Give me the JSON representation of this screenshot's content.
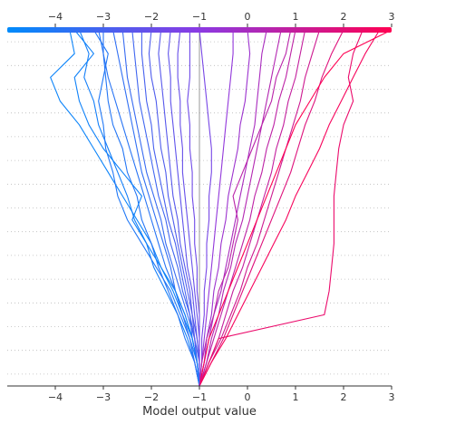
{
  "chart_data": {
    "type": "line",
    "subtype": "decision_plot",
    "title": "",
    "xlabel": "Model output value",
    "ylabel": "",
    "xlim": [
      -5.0,
      3.0
    ],
    "base_value": -1.0,
    "x_ticks": [
      -4,
      -3,
      -2,
      -1,
      0,
      1,
      2,
      3
    ],
    "x_tick_labels": [
      "−4",
      "−3",
      "−2",
      "−1",
      "0",
      "1",
      "2",
      "3"
    ],
    "feature_rows": 15,
    "feature_names": [],
    "top_axis": true,
    "bottom_axis": true,
    "grid": "dotted-horizontal",
    "color_scale": {
      "low": "#008bfb",
      "mid": "#8b3ae3",
      "high": "#ff0052",
      "min": -4.0,
      "max": 3.0
    },
    "series": [
      {
        "values": [
          -1.0,
          -1.05,
          -1.15,
          -1.35,
          -1.55,
          -1.8,
          -2.0,
          -2.3,
          -2.6,
          -2.9,
          -3.2,
          -3.5,
          -3.9,
          -4.1,
          -3.6,
          -3.7
        ]
      },
      {
        "values": [
          -1.0,
          -1.1,
          -1.25,
          -1.45,
          -1.7,
          -1.95,
          -2.1,
          -2.35,
          -2.5,
          -2.7,
          -2.9,
          -3.1,
          -3.2,
          -3.4,
          -3.3,
          -3.5
        ]
      },
      {
        "values": [
          -1.0,
          -1.05,
          -1.2,
          -1.4,
          -1.6,
          -1.9,
          -2.2,
          -2.5,
          -2.7,
          -2.8,
          -2.95,
          -3.0,
          -3.1,
          -3.0,
          -2.9,
          -3.2
        ]
      },
      {
        "values": [
          -1.0,
          -1.1,
          -1.3,
          -1.45,
          -1.65,
          -1.85,
          -2.0,
          -2.2,
          -2.3,
          -2.5,
          -2.6,
          -2.8,
          -2.9,
          -2.95,
          -3.0,
          -3.1
        ]
      },
      {
        "values": [
          -1.0,
          -1.05,
          -1.15,
          -1.3,
          -1.5,
          -1.7,
          -1.85,
          -2.0,
          -2.15,
          -2.3,
          -2.45,
          -2.6,
          -2.75,
          -2.9,
          -3.0,
          -3.0
        ]
      },
      {
        "values": [
          -1.0,
          -1.1,
          -1.2,
          -1.35,
          -1.5,
          -1.6,
          -1.75,
          -1.9,
          -2.05,
          -2.2,
          -2.3,
          -2.4,
          -2.5,
          -2.6,
          -2.7,
          -2.8
        ]
      },
      {
        "values": [
          -1.0,
          -1.0,
          -1.1,
          -1.25,
          -1.4,
          -1.55,
          -1.7,
          -1.8,
          -1.95,
          -2.1,
          -2.2,
          -2.3,
          -2.4,
          -2.5,
          -2.55,
          -2.6
        ]
      },
      {
        "values": [
          -1.0,
          -1.05,
          -1.15,
          -1.2,
          -1.35,
          -1.45,
          -1.6,
          -1.7,
          -1.85,
          -1.95,
          -2.05,
          -2.15,
          -2.25,
          -2.3,
          -2.35,
          -2.4
        ]
      },
      {
        "values": [
          -1.0,
          -1.05,
          -1.1,
          -1.2,
          -1.3,
          -1.4,
          -1.5,
          -1.65,
          -1.75,
          -1.85,
          -1.95,
          -2.0,
          -2.1,
          -2.15,
          -2.2,
          -2.2
        ]
      },
      {
        "values": [
          -1.0,
          -1.0,
          -1.05,
          -1.15,
          -1.25,
          -1.35,
          -1.45,
          -1.55,
          -1.65,
          -1.7,
          -1.8,
          -1.85,
          -1.9,
          -2.0,
          -2.05,
          -2.0
        ]
      },
      {
        "values": [
          -1.0,
          -1.05,
          -1.1,
          -1.15,
          -1.2,
          -1.3,
          -1.4,
          -1.45,
          -1.55,
          -1.6,
          -1.65,
          -1.7,
          -1.75,
          -1.8,
          -1.85,
          -1.8
        ]
      },
      {
        "values": [
          -1.0,
          -1.0,
          -1.05,
          -1.1,
          -1.15,
          -1.25,
          -1.3,
          -1.35,
          -1.4,
          -1.45,
          -1.5,
          -1.55,
          -1.6,
          -1.6,
          -1.65,
          -1.6
        ]
      },
      {
        "values": [
          -1.0,
          -1.0,
          -1.0,
          -1.05,
          -1.1,
          -1.15,
          -1.2,
          -1.25,
          -1.3,
          -1.35,
          -1.35,
          -1.4,
          -1.4,
          -1.45,
          -1.45,
          -1.4
        ]
      },
      {
        "values": [
          -1.0,
          -1.0,
          -1.0,
          -1.0,
          -1.05,
          -1.05,
          -1.1,
          -1.1,
          -1.15,
          -1.15,
          -1.2,
          -1.2,
          -1.25,
          -1.2,
          -1.2,
          -1.2
        ]
      },
      {
        "values": [
          -1.0,
          -0.95,
          -0.95,
          -0.9,
          -0.9,
          -0.85,
          -0.85,
          -0.8,
          -0.8,
          -0.75,
          -0.75,
          -0.8,
          -0.85,
          -0.9,
          -0.95,
          -1.0
        ]
      },
      {
        "values": [
          -1.0,
          -0.95,
          -0.9,
          -0.85,
          -0.8,
          -0.75,
          -0.7,
          -0.65,
          -0.6,
          -0.55,
          -0.5,
          -0.45,
          -0.4,
          -0.35,
          -0.3,
          -0.3
        ]
      },
      {
        "values": [
          -1.0,
          -0.9,
          -0.85,
          -0.75,
          -0.7,
          -0.6,
          -0.55,
          -0.45,
          -0.4,
          -0.3,
          -0.2,
          -0.15,
          -0.05,
          0.0,
          0.05,
          0.0
        ]
      },
      {
        "values": [
          -1.0,
          -0.9,
          -0.8,
          -0.7,
          -0.55,
          -0.45,
          -0.35,
          -0.25,
          -0.15,
          -0.05,
          0.05,
          0.15,
          0.2,
          0.25,
          0.3,
          0.4
        ]
      },
      {
        "values": [
          -1.0,
          -0.85,
          -0.75,
          -0.6,
          -0.5,
          -0.35,
          -0.25,
          -0.1,
          0.0,
          0.1,
          0.2,
          0.3,
          0.4,
          0.5,
          0.6,
          0.7
        ]
      },
      {
        "values": [
          -1.0,
          -0.85,
          -0.7,
          -0.55,
          -0.4,
          -0.25,
          -0.1,
          0.05,
          0.15,
          0.3,
          0.4,
          0.55,
          0.65,
          0.8,
          0.9,
          1.0
        ]
      },
      {
        "values": [
          -1.0,
          -0.8,
          -0.6,
          -0.45,
          -0.3,
          -0.1,
          0.05,
          0.2,
          0.35,
          0.5,
          0.6,
          0.75,
          0.85,
          1.0,
          1.1,
          1.2
        ]
      },
      {
        "values": [
          -1.0,
          -0.8,
          -0.55,
          -0.35,
          -0.15,
          0.0,
          0.2,
          0.35,
          0.5,
          0.65,
          0.8,
          0.95,
          1.1,
          1.2,
          1.35,
          1.5
        ]
      },
      {
        "values": [
          -1.0,
          -0.75,
          -0.5,
          -0.3,
          -0.1,
          0.1,
          0.3,
          0.5,
          0.7,
          0.9,
          1.05,
          1.2,
          1.4,
          1.55,
          1.75,
          2.0
        ]
      },
      {
        "values": [
          -1.0,
          -0.8,
          -0.6,
          1.6,
          1.7,
          1.75,
          1.8,
          1.8,
          1.8,
          1.85,
          1.9,
          2.0,
          2.2,
          2.1,
          2.2,
          2.4
        ]
      },
      {
        "values": [
          -1.0,
          -0.75,
          -0.45,
          -0.2,
          0.05,
          0.3,
          0.55,
          0.8,
          1.0,
          1.25,
          1.5,
          1.7,
          1.95,
          2.2,
          2.45,
          2.75
        ]
      },
      {
        "values": [
          -1.0,
          -0.9,
          -0.8,
          -0.6,
          -0.4,
          -0.2,
          0.0,
          0.2,
          0.4,
          0.6,
          0.8,
          1.0,
          1.3,
          1.6,
          2.0,
          3.0
        ]
      },
      {
        "values": [
          -1.0,
          -1.05,
          -1.15,
          -1.3,
          -1.5,
          -1.8,
          -2.1,
          -2.4,
          -2.2,
          -2.6,
          -3.0,
          -3.3,
          -3.5,
          -3.6,
          -3.2,
          -3.6
        ]
      },
      {
        "values": [
          -1.0,
          -0.95,
          -0.85,
          -0.7,
          -0.6,
          -0.4,
          -0.3,
          -0.2,
          -0.3,
          -0.1,
          0.1,
          0.3,
          0.5,
          0.6,
          0.8,
          0.9
        ]
      }
    ]
  }
}
